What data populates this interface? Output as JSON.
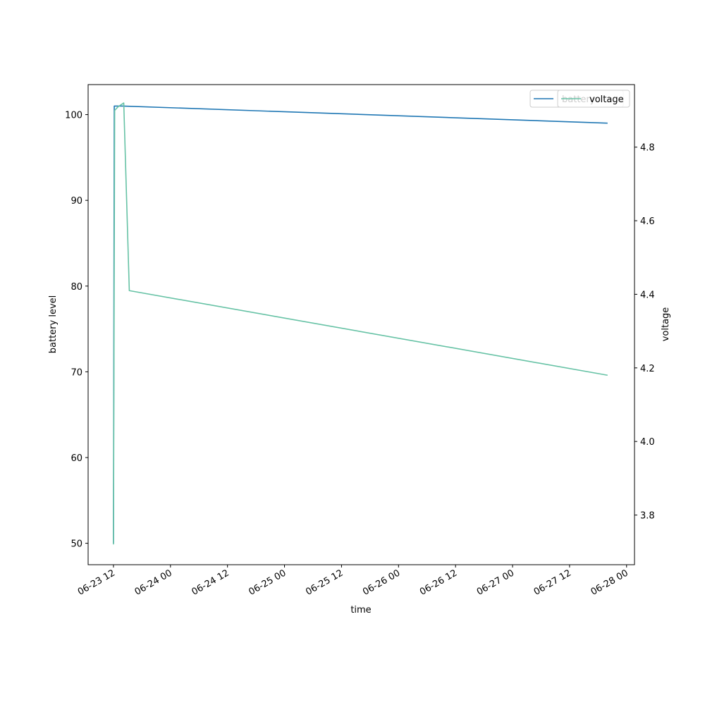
{
  "chart_data": {
    "type": "line",
    "xlabel": "time",
    "ylabel_left": "battery level",
    "ylabel_right": "voltage",
    "x_axis": {
      "range": [
        "2023-06-23T06:40",
        "2023-06-28T01:40"
      ],
      "ticks": [
        {
          "t": "2023-06-23T12:00",
          "label": "06-23 12"
        },
        {
          "t": "2023-06-24T00:00",
          "label": "06-24 00"
        },
        {
          "t": "2023-06-24T12:00",
          "label": "06-24 12"
        },
        {
          "t": "2023-06-25T00:00",
          "label": "06-25 00"
        },
        {
          "t": "2023-06-25T12:00",
          "label": "06-25 12"
        },
        {
          "t": "2023-06-26T00:00",
          "label": "06-26 00"
        },
        {
          "t": "2023-06-26T12:00",
          "label": "06-26 12"
        },
        {
          "t": "2023-06-27T00:00",
          "label": "06-27 00"
        },
        {
          "t": "2023-06-27T12:00",
          "label": "06-27 12"
        },
        {
          "t": "2023-06-28T00:00",
          "label": "06-28 00"
        }
      ]
    },
    "y_left": {
      "range": [
        47.5,
        103.5
      ],
      "ticks": [
        {
          "v": 50,
          "label": "50"
        },
        {
          "v": 60,
          "label": "60"
        },
        {
          "v": 70,
          "label": "70"
        },
        {
          "v": 80,
          "label": "80"
        },
        {
          "v": 90,
          "label": "90"
        },
        {
          "v": 100,
          "label": "100"
        }
      ]
    },
    "y_right": {
      "range": [
        3.665,
        4.97
      ],
      "ticks": [
        {
          "v": 3.8,
          "label": "3.8"
        },
        {
          "v": 4.0,
          "label": "4.0"
        },
        {
          "v": 4.2,
          "label": "4.2"
        },
        {
          "v": 4.4,
          "label": "4.4"
        },
        {
          "v": 4.6,
          "label": "4.6"
        },
        {
          "v": 4.8,
          "label": "4.8"
        }
      ]
    },
    "series": [
      {
        "name": "battery",
        "axis": "left",
        "color": "#1f77b4",
        "points": [
          {
            "t": "2023-06-23T12:00",
            "y": 50
          },
          {
            "t": "2023-06-23T12:10",
            "y": 101
          },
          {
            "t": "2023-06-23T14:00",
            "y": 101
          },
          {
            "t": "2023-06-27T20:00",
            "y": 99
          }
        ]
      },
      {
        "name": "voltage",
        "axis": "right",
        "color": "#66c2a5",
        "points": [
          {
            "t": "2023-06-23T12:00",
            "y": 3.72
          },
          {
            "t": "2023-06-23T12:15",
            "y": 4.9
          },
          {
            "t": "2023-06-23T13:00",
            "y": 4.91
          },
          {
            "t": "2023-06-23T14:10",
            "y": 4.92
          },
          {
            "t": "2023-06-23T15:20",
            "y": 4.41
          },
          {
            "t": "2023-06-27T20:00",
            "y": 4.18
          }
        ]
      }
    ],
    "legends": [
      {
        "position": "upper-right",
        "entries": [
          {
            "label": "battery",
            "color": "#1f77b4"
          }
        ]
      },
      {
        "position": "upper-right",
        "entries": [
          {
            "label": "voltage",
            "color": "#66c2a5"
          }
        ]
      }
    ],
    "grid": false
  }
}
